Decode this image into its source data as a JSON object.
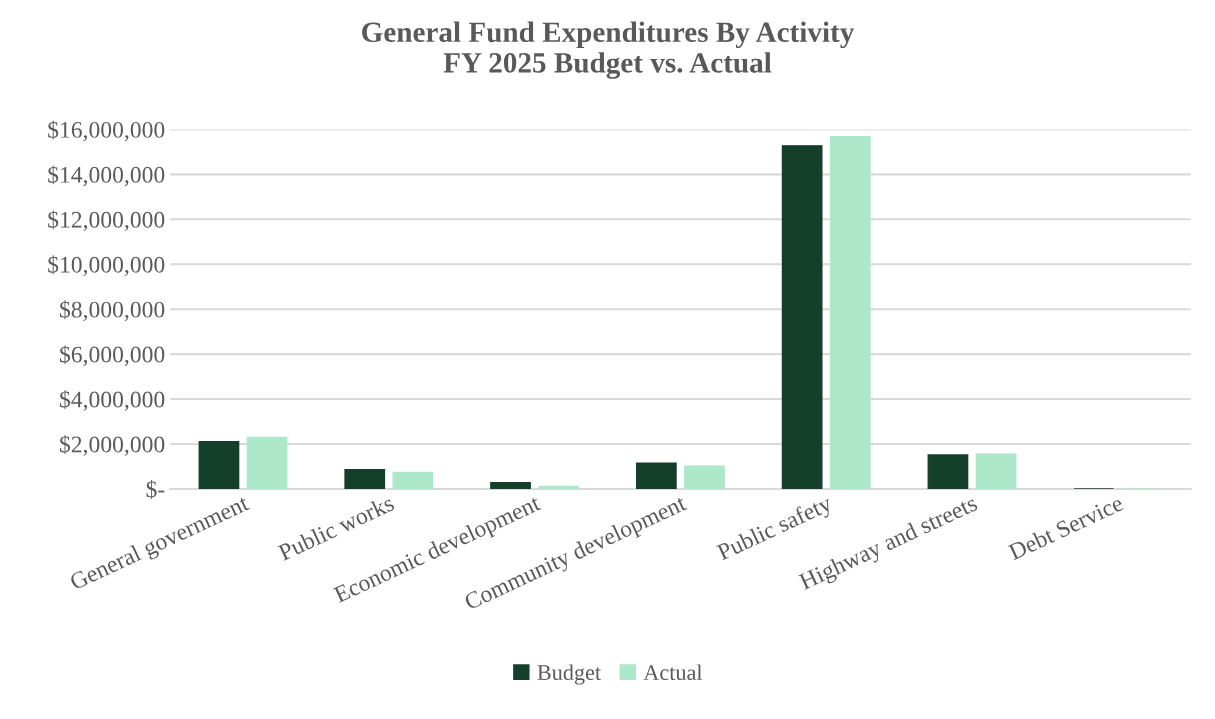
{
  "chart_data": {
    "type": "bar",
    "title": "General Fund Expenditures By Activity\nFY 2025 Budget vs. Actual",
    "categories": [
      "General government",
      "Public works",
      "Economic development",
      "Community development",
      "Public safety",
      "Highway and streets",
      "Debt Service"
    ],
    "series": [
      {
        "name": "Budget",
        "color": "#143f2a",
        "values": [
          2100000,
          860000,
          280000,
          1150000,
          15270000,
          1510000,
          0
        ]
      },
      {
        "name": "Actual",
        "color": "#ace8c9",
        "values": [
          2290000,
          730000,
          110000,
          1010000,
          15680000,
          1540000,
          0
        ]
      }
    ],
    "ylim": [
      0,
      16000000
    ],
    "yticks": [
      {
        "value": 0,
        "label": "$-"
      },
      {
        "value": 2000000,
        "label": "$2,000,000"
      },
      {
        "value": 4000000,
        "label": "$4,000,000"
      },
      {
        "value": 6000000,
        "label": "$6,000,000"
      },
      {
        "value": 8000000,
        "label": "$8,000,000"
      },
      {
        "value": 10000000,
        "label": "$10,000,000"
      },
      {
        "value": 12000000,
        "label": "$12,000,000"
      },
      {
        "value": 14000000,
        "label": "$14,000,000"
      },
      {
        "value": 16000000,
        "label": "$16,000,000"
      }
    ],
    "grid": "y",
    "legend": "bottom"
  }
}
